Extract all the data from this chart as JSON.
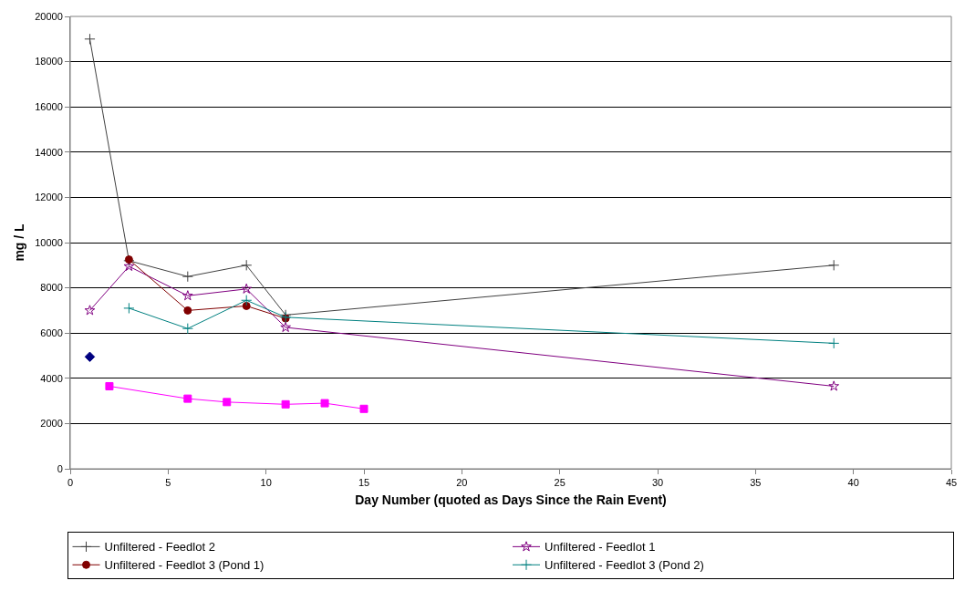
{
  "chart_data": {
    "type": "line",
    "xlabel": "Day Number (quoted as Days Since the Rain Event)",
    "ylabel": "mg / L",
    "xlim": [
      0,
      45
    ],
    "xticks": [
      0,
      5,
      10,
      15,
      20,
      25,
      30,
      35,
      40,
      45
    ],
    "ylim": [
      0,
      20000
    ],
    "yticks": [
      0,
      2000,
      4000,
      6000,
      8000,
      10000,
      12000,
      14000,
      16000,
      18000,
      20000
    ],
    "grid": "y",
    "legend": "bottom",
    "line_style": "solid",
    "series": [
      {
        "color": "#ff00ff",
        "marker": "square",
        "x": [
          2,
          6,
          8,
          11,
          13,
          15
        ],
        "values": [
          3650,
          3100,
          2950,
          2850,
          2900,
          2650
        ]
      },
      {
        "color": "#000080",
        "marker": "diamond",
        "x": [
          1
        ],
        "values": [
          4950
        ]
      },
      {
        "name": "Unfiltered - Feedlot 2",
        "color": "#404040",
        "marker": "cross",
        "x": [
          1,
          3,
          6,
          9,
          11,
          39
        ],
        "values": [
          19000,
          9200,
          8500,
          9000,
          6800,
          9000
        ]
      },
      {
        "name": "Unfiltered - Feedlot 1",
        "color": "#800080",
        "marker": "star",
        "x": [
          1,
          3,
          6,
          9,
          11,
          39
        ],
        "values": [
          7000,
          8950,
          7650,
          7950,
          6250,
          3650
        ]
      },
      {
        "name": "Unfiltered - Feedlot 3 (Pond 1)",
        "color": "#800000",
        "marker": "circle",
        "x": [
          3,
          6,
          9,
          11
        ],
        "values": [
          9250,
          7000,
          7200,
          6650
        ]
      },
      {
        "name": "Unfiltered - Feedlot 3 (Pond 2)",
        "color": "#008080",
        "marker": "cross",
        "x": [
          3,
          6,
          9,
          11,
          39
        ],
        "values": [
          7100,
          6200,
          7450,
          6700,
          5550
        ]
      }
    ]
  }
}
